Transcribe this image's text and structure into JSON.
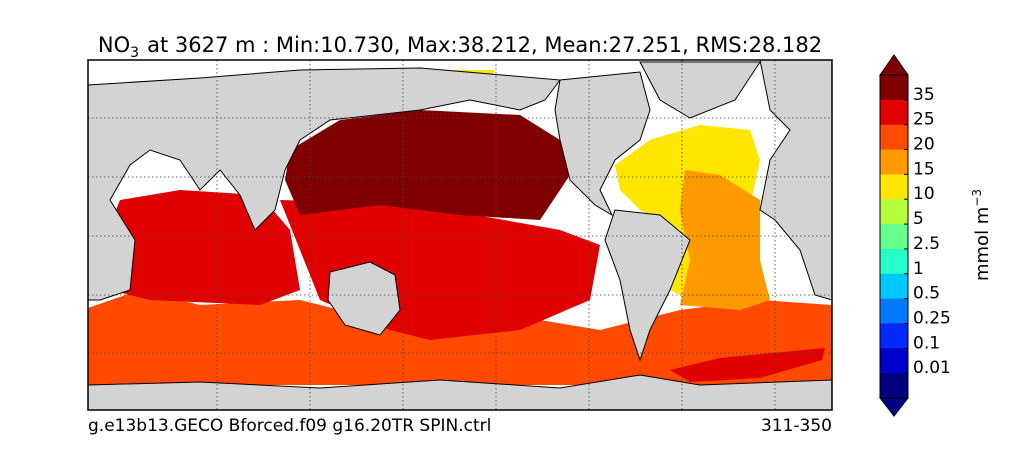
{
  "title": {
    "species": "NO",
    "subscript": "3",
    "rest": "at 3627 m : Min:10.730, Max:38.212, Mean:27.251, RMS:28.182"
  },
  "colorbar": {
    "ticks": [
      35,
      25,
      20,
      15,
      10,
      5,
      2.5,
      1,
      0.5,
      0.25,
      0.1,
      0.01
    ],
    "colors": [
      "#800000",
      "#e00000",
      "#ff4a00",
      "#ff9a00",
      "#ffe600",
      "#b4ff3c",
      "#64ff8c",
      "#28ffc8",
      "#00c8ff",
      "#0078ff",
      "#0028ff",
      "#0000c8",
      "#000080"
    ],
    "unit": "mmol m",
    "unit_exponent": "−3"
  },
  "footer": {
    "left": "g.e13b13.GECO Bforced.f09 g16.20TR SPIN.ctrl",
    "right": "311-350"
  }
}
